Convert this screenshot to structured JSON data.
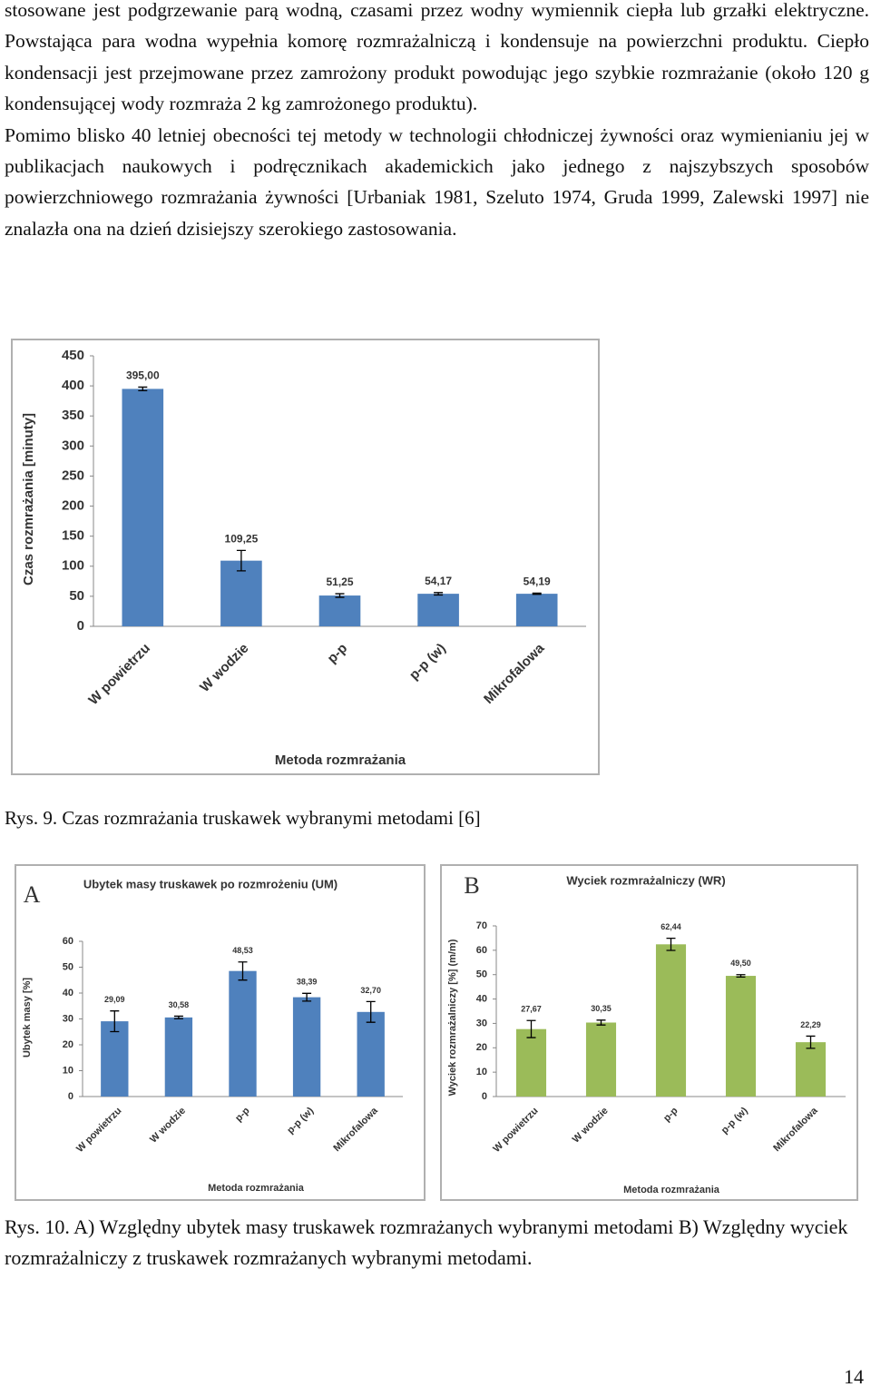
{
  "paragraphs": [
    "stosowane jest podgrzewanie parą wodną, czasami przez wodny wymiennik ciepła lub grzałki elektryczne. Powstająca para wodna wypełnia komorę rozmrażalniczą i kondensuje na powierzchni produktu. Ciepło kondensacji jest przejmowane przez zamrożony produkt powodując jego szybkie rozmrażanie (około 120 g kondensującej wody rozmraża 2 kg zamrożonego produktu).",
    "Pomimo blisko 40 letniej obecności tej metody w technologii chłodniczej żywności oraz wymienianiu jej w publikacjach naukowych i podręcznikach akademickich jako jednego z najszybszych sposobów powierzchniowego rozmrażania żywności [Urbaniak 1981, Szeluto 1974, Gruda 1999, Zalewski 1997] nie znalazła ona na dzień dzisiejszy szerokiego zastosowania."
  ],
  "captions": [
    "Rys. 9. Czas rozmrażania truskawek wybranymi metodami [6]",
    "Rys. 10. A) Względny ubytek masy truskawek rozmrażanych wybranymi metodami B) Względny wyciek rozmrażalniczy z truskawek rozmrażanych wybranymi metodami."
  ],
  "page_number": "14",
  "chart_data": [
    {
      "type": "bar",
      "x_label": "Metoda rozmrażania",
      "y_label": "Czas rozmrażania [minuty]",
      "categories": [
        "W powietrzu",
        "W wodzie",
        "p-p",
        "p-p (w)",
        "Mikrofalowa"
      ],
      "values": [
        395,
        109.25,
        51.25,
        54.17,
        54.19
      ],
      "value_labels": [
        "395,00",
        "109,25",
        "51,25",
        "54,17",
        "54,19"
      ],
      "errors": [
        3,
        17,
        3,
        2,
        1
      ],
      "color": "#4f81bd",
      "ylim": [
        0,
        450
      ],
      "yticks": [
        0,
        50,
        100,
        150,
        200,
        250,
        300,
        350,
        400,
        450
      ]
    },
    {
      "type": "bar",
      "panel": "A",
      "title": "Ubytek masy truskawek po rozmrożeniu (UM)",
      "x_label": "Metoda rozmrażania",
      "y_label": "Ubytek masy [%]",
      "categories": [
        "W powietrzu",
        "W wodzie",
        "p-p",
        "p-p (w)",
        "Mikrofalowa"
      ],
      "values": [
        29.09,
        30.58,
        48.53,
        38.39,
        32.7
      ],
      "value_labels": [
        "29,09",
        "30,58",
        "48,53",
        "38,39",
        "32,70"
      ],
      "errors": [
        4,
        0.5,
        3.5,
        1.5,
        4
      ],
      "color": "#4f81bd",
      "ylim": [
        0,
        60
      ],
      "yticks": [
        0,
        10,
        20,
        30,
        40,
        50,
        60
      ]
    },
    {
      "type": "bar",
      "panel": "B",
      "title": "Wyciek rozmrażalniczy (WR)",
      "x_label": "Metoda rozmrażania",
      "y_label": "Wyciek rozmrażalniczy [%] (m/m)",
      "categories": [
        "W powietrzu",
        "W wodzie",
        "p-p",
        "p-p (w)",
        "Mikrofalowa"
      ],
      "values": [
        27.67,
        30.35,
        62.44,
        49.5,
        22.29
      ],
      "value_labels": [
        "27,67",
        "30,35",
        "62,44",
        "49,50",
        "22,29"
      ],
      "errors": [
        3.5,
        1,
        2.5,
        0.5,
        2.5
      ],
      "color": "#9bbb59",
      "ylim": [
        0,
        70
      ],
      "yticks": [
        0,
        10,
        20,
        30,
        40,
        50,
        60,
        70
      ]
    }
  ]
}
